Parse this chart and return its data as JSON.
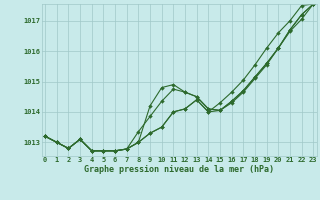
{
  "xlabel": "Graphe pression niveau de la mer (hPa)",
  "xlim": [
    -0.3,
    23.3
  ],
  "ylim": [
    1012.55,
    1017.55
  ],
  "yticks": [
    1013,
    1014,
    1015,
    1016,
    1017
  ],
  "xticks": [
    0,
    1,
    2,
    3,
    4,
    5,
    6,
    7,
    8,
    9,
    10,
    11,
    12,
    13,
    14,
    15,
    16,
    17,
    18,
    19,
    20,
    21,
    22,
    23
  ],
  "background_color": "#c8eaea",
  "grid_color": "#a0c8c8",
  "line_color": "#2d6a2d",
  "lines": [
    [
      1013.2,
      1013.0,
      1012.8,
      1013.1,
      1012.72,
      1012.72,
      1012.72,
      1012.78,
      1013.0,
      1013.3,
      1013.5,
      1014.0,
      1014.1,
      1014.4,
      1014.0,
      1014.05,
      1014.3,
      1014.65,
      1015.1,
      1015.55,
      1016.1,
      1016.65,
      1017.05,
      1017.55
    ],
    [
      1013.2,
      1013.0,
      1012.8,
      1013.1,
      1012.72,
      1012.72,
      1012.72,
      1012.78,
      1013.0,
      1013.3,
      1013.5,
      1014.0,
      1014.1,
      1014.4,
      1014.0,
      1014.3,
      1014.65,
      1015.05,
      1015.55,
      1016.1,
      1016.6,
      1017.0,
      1017.5,
      1017.55
    ],
    [
      1013.2,
      1013.0,
      1012.8,
      1013.1,
      1012.72,
      1012.72,
      1012.72,
      1012.78,
      1013.35,
      1013.85,
      1014.35,
      1014.75,
      1014.65,
      1014.5,
      1014.1,
      1014.05,
      1014.35,
      1014.7,
      1015.15,
      1015.6,
      1016.1,
      1016.7,
      1017.2,
      1017.55
    ],
    [
      1013.2,
      1013.0,
      1012.8,
      1013.1,
      1012.72,
      1012.72,
      1012.72,
      1012.78,
      1013.0,
      1014.2,
      1014.8,
      1014.9,
      1014.65,
      1014.5,
      1014.1,
      1014.05,
      1014.35,
      1014.7,
      1015.15,
      1015.6,
      1016.1,
      1016.7,
      1017.2,
      1017.55
    ]
  ],
  "marker": "D",
  "markersize": 2.0,
  "linewidth": 0.8,
  "label_fontsize": 6.0,
  "label_fontweight": "bold",
  "tick_fontsize": 5.0,
  "tick_color": "#2d6a2d"
}
